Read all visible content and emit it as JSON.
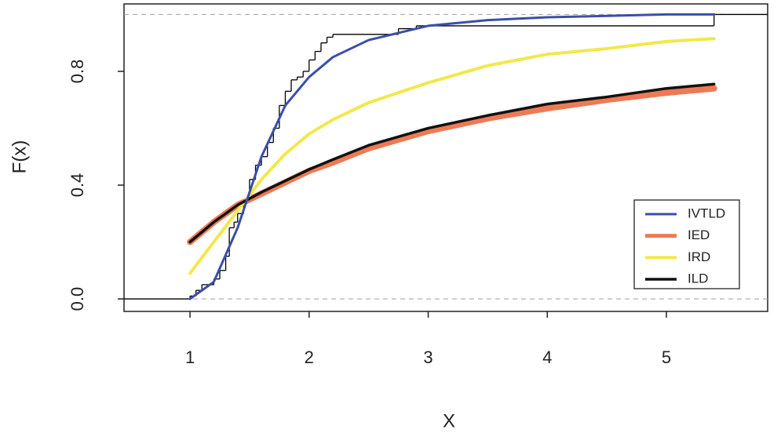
{
  "chart_data": {
    "type": "line",
    "xlabel": "X",
    "ylabel": "F(x)",
    "xlim": [
      0.446,
      5.85
    ],
    "ylim": [
      -0.044,
      1.037
    ],
    "xticks": [
      1,
      2,
      3,
      4,
      5
    ],
    "yticks": [
      {
        "value": 0,
        "label": "0.0"
      },
      0.4,
      0.8
    ],
    "hlines": [
      0,
      1
    ],
    "legend": "bottomright",
    "x": [
      1,
      1.2,
      1.4,
      1.6,
      1.8,
      2,
      2.2,
      2.5,
      3,
      3.5,
      4,
      4.5,
      5,
      5.4
    ],
    "series": [
      {
        "name": "IVTLD",
        "color": "#3a4fa8",
        "width": 3,
        "values": [
          0,
          0.06,
          0.25,
          0.5,
          0.68,
          0.78,
          0.85,
          0.91,
          0.96,
          0.98,
          0.99,
          0.995,
          1,
          1
        ]
      },
      {
        "name": "IED",
        "color": "#ee7a55",
        "width": 8,
        "values": [
          0.2,
          0.27,
          0.33,
          0.37,
          0.41,
          0.45,
          0.48,
          0.53,
          0.59,
          0.635,
          0.67,
          0.7,
          0.725,
          0.74
        ]
      },
      {
        "name": "IRD",
        "color": "#f2e84a",
        "width": 4,
        "values": [
          0.09,
          0.2,
          0.31,
          0.42,
          0.51,
          0.58,
          0.63,
          0.69,
          0.76,
          0.82,
          0.86,
          0.88,
          0.905,
          0.915
        ]
      },
      {
        "name": "ILD",
        "color": "#111111",
        "width": 3.5,
        "values": [
          0.2,
          0.27,
          0.33,
          0.375,
          0.415,
          0.455,
          0.49,
          0.54,
          0.6,
          0.645,
          0.685,
          0.71,
          0.74,
          0.755
        ]
      }
    ],
    "ecdf": {
      "color": "#000000",
      "x": [
        1,
        1.05,
        1.1,
        1.2,
        1.25,
        1.3,
        1.33,
        1.37,
        1.4,
        1.45,
        1.5,
        1.55,
        1.6,
        1.65,
        1.7,
        1.75,
        1.8,
        1.85,
        1.9,
        1.95,
        2,
        2.05,
        2.1,
        2.15,
        2.2,
        2.75,
        2.9,
        5.4
      ],
      "values": [
        0.01,
        0.03,
        0.05,
        0.07,
        0.1,
        0.15,
        0.25,
        0.27,
        0.3,
        0.35,
        0.42,
        0.47,
        0.5,
        0.55,
        0.6,
        0.68,
        0.73,
        0.77,
        0.78,
        0.8,
        0.84,
        0.87,
        0.9,
        0.92,
        0.93,
        0.95,
        0.96,
        1
      ]
    }
  }
}
